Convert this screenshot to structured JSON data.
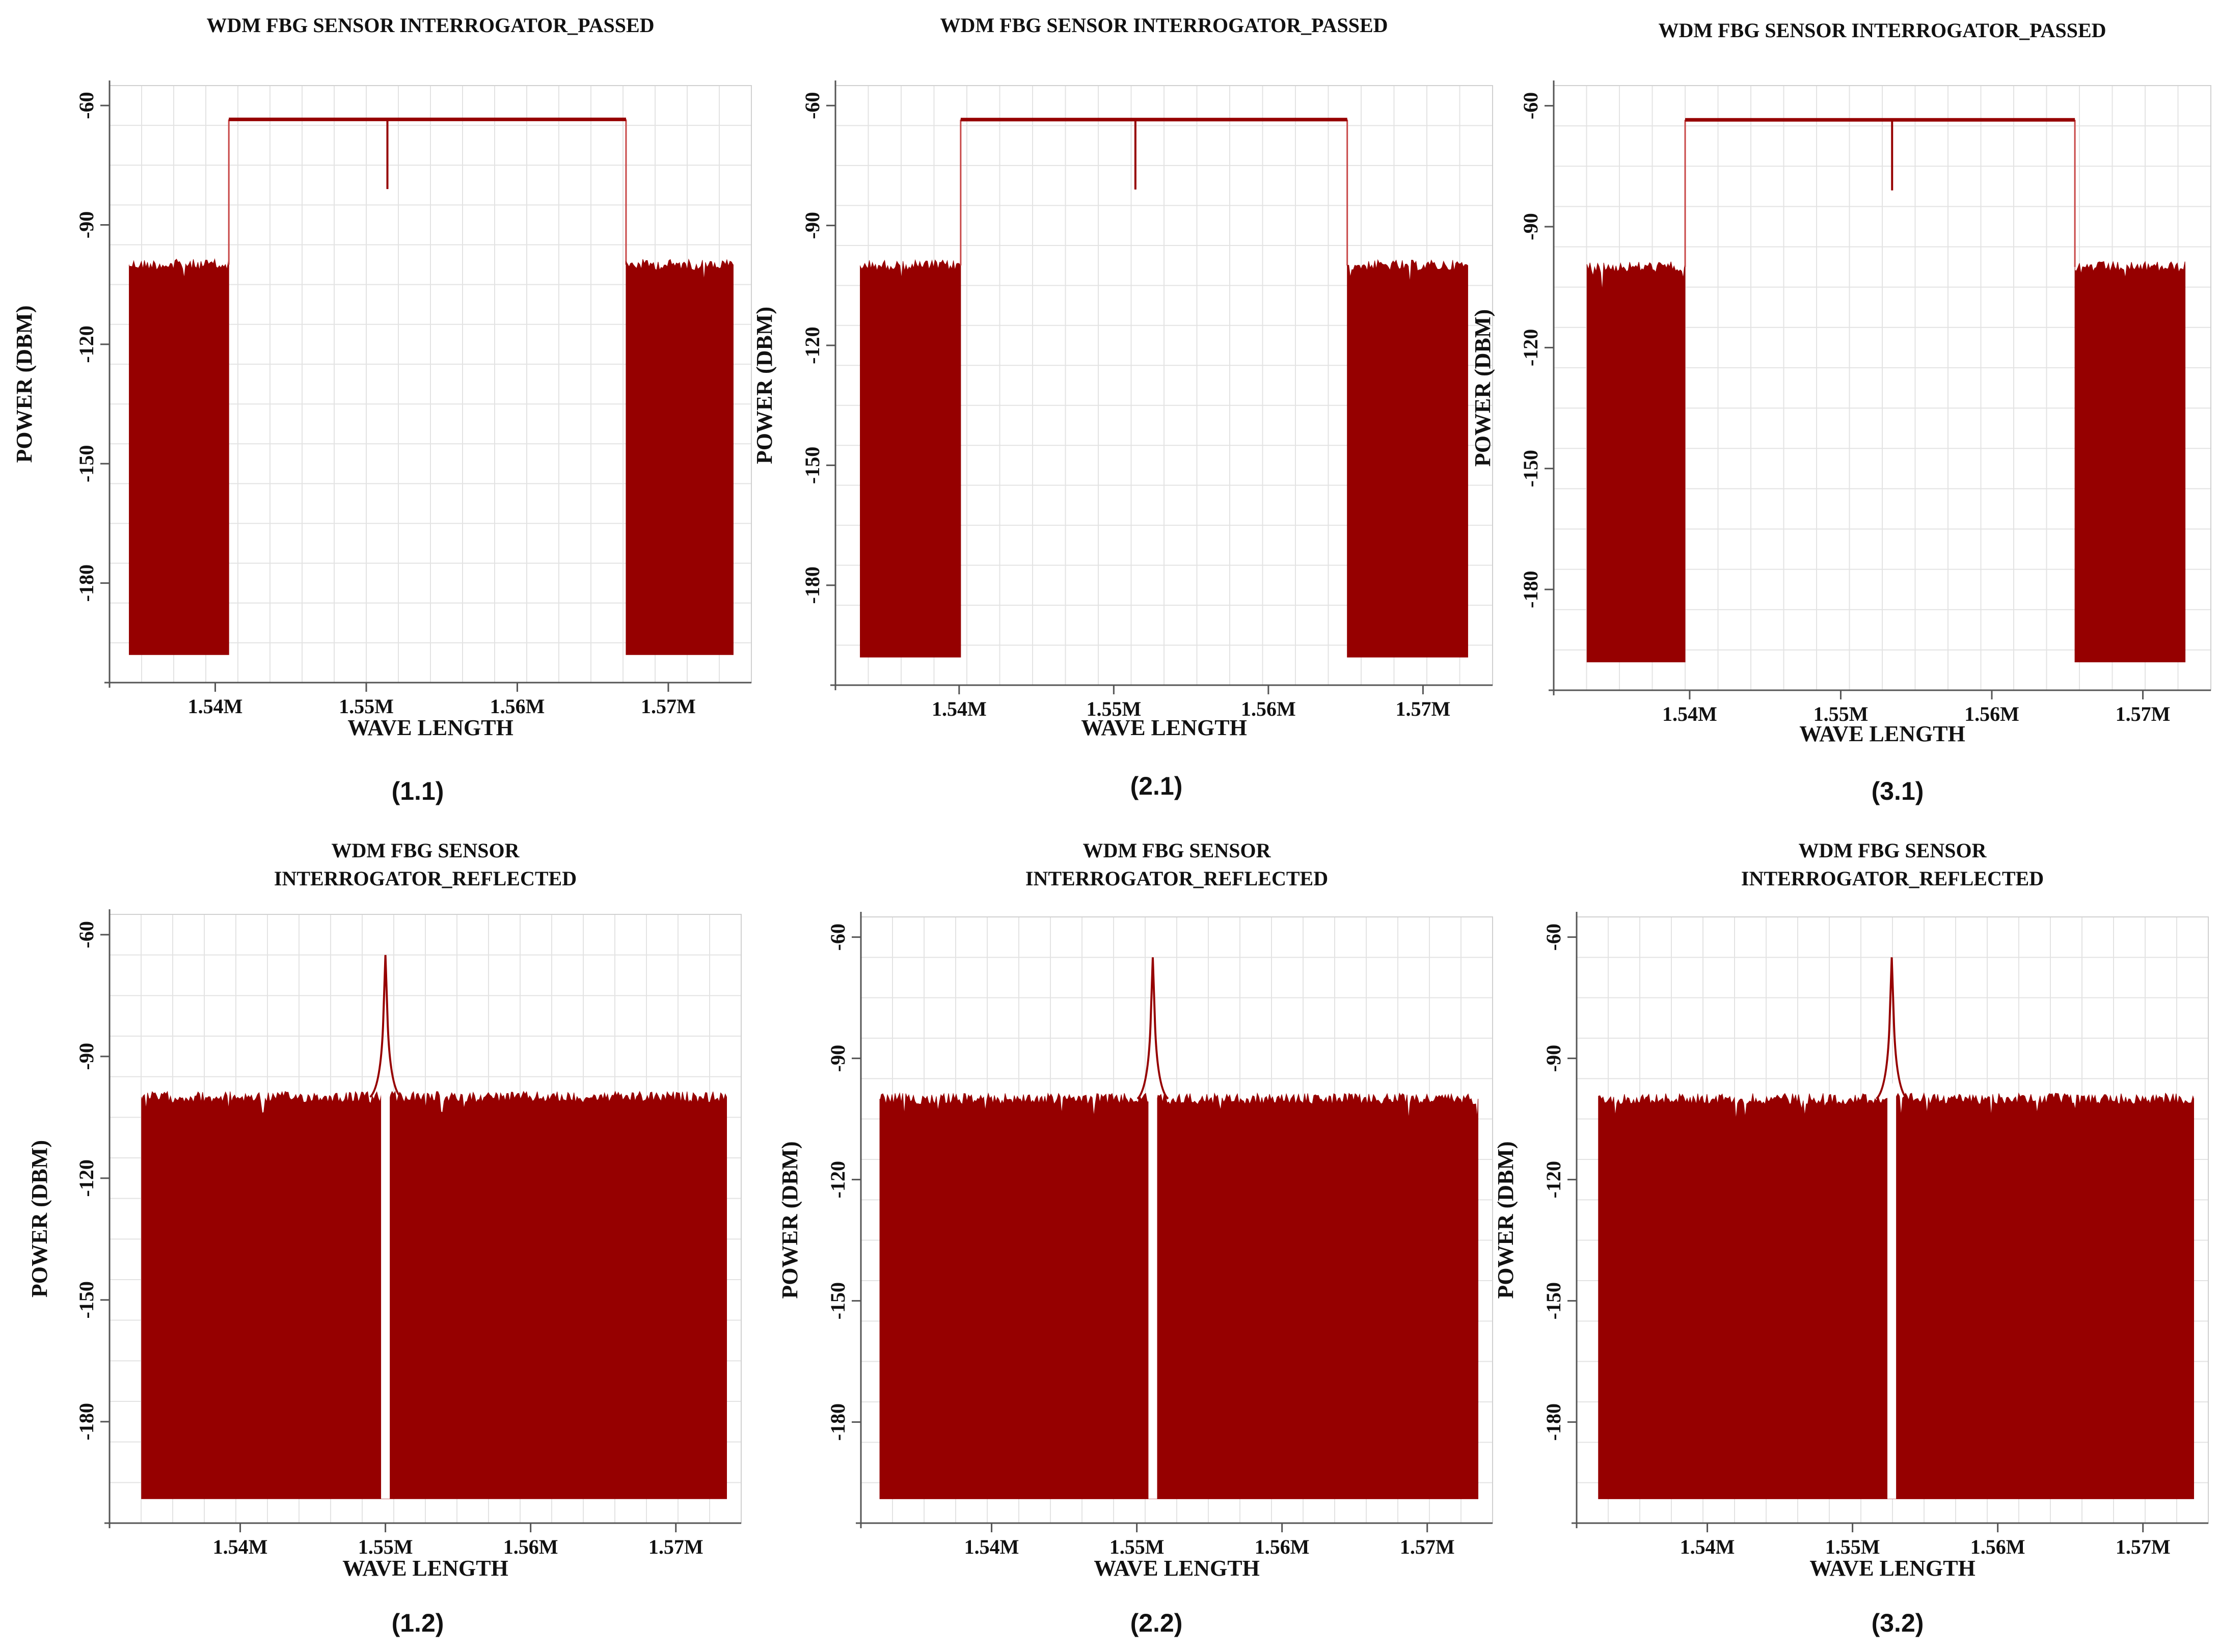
{
  "colors": {
    "signal": "#960000",
    "signal_light": "#c84848"
  },
  "chart_data": [
    {
      "id": "1.1",
      "type": "area",
      "title": [
        "WDM FBG SENSOR INTERROGATOR_PASSED"
      ],
      "xlabel": "WAVE LENGTH",
      "ylabel": "POWER (DBM)",
      "caption": "(1.1)",
      "xlim": [
        1.533,
        1.5755
      ],
      "ylim": [
        -205,
        -55
      ],
      "x_ticks": [
        1.54,
        1.55,
        1.56,
        1.57
      ],
      "x_tick_labels": [
        "1.54M",
        "1.55M",
        "1.56M",
        "1.57M"
      ],
      "y_ticks": [
        -60,
        -90,
        -120,
        -150,
        -180
      ],
      "y_tick_labels": [
        "-60",
        "-90",
        "-120",
        "-150",
        "-180"
      ],
      "series": [
        {
          "kind": "noise_band",
          "x": [
            1.5343,
            1.5409
          ],
          "top": -100,
          "bottom": -198
        },
        {
          "kind": "passband",
          "x": [
            1.5409,
            1.5672
          ],
          "level": -63.5
        },
        {
          "kind": "notch",
          "x": 1.5514,
          "depth": -81
        },
        {
          "kind": "noise_band",
          "x": [
            1.5672,
            1.5743
          ],
          "top": -100,
          "bottom": -198
        }
      ]
    },
    {
      "id": "2.1",
      "type": "area",
      "title": [
        "WDM FBG SENSOR INTERROGATOR_PASSED"
      ],
      "xlabel": "WAVE LENGTH",
      "ylabel": "POWER (DBM)",
      "caption": "(2.1)",
      "xlim": [
        1.532,
        1.5745
      ],
      "ylim": [
        -205,
        -55
      ],
      "x_ticks": [
        1.54,
        1.55,
        1.56,
        1.57
      ],
      "x_tick_labels": [
        "1.54M",
        "1.55M",
        "1.56M",
        "1.57M"
      ],
      "y_ticks": [
        -60,
        -90,
        -120,
        -150,
        -180
      ],
      "y_tick_labels": [
        "-60",
        "-90",
        "-120",
        "-150",
        "-180"
      ],
      "series": [
        {
          "kind": "noise_band",
          "x": [
            1.5336,
            1.5401
          ],
          "top": -100,
          "bottom": -198
        },
        {
          "kind": "passband",
          "x": [
            1.5401,
            1.5651
          ],
          "level": -63.5
        },
        {
          "kind": "notch",
          "x": 1.5514,
          "depth": -81
        },
        {
          "kind": "noise_band",
          "x": [
            1.5651,
            1.5729
          ],
          "top": -100,
          "bottom": -198
        }
      ]
    },
    {
      "id": "3.1",
      "type": "area",
      "title": [
        "WDM FBG SENSOR INTERROGATOR_PASSED"
      ],
      "xlabel": "WAVE LENGTH",
      "ylabel": "POWER (DBM)",
      "caption": "(3.1)",
      "xlim": [
        1.531,
        1.5745
      ],
      "ylim": [
        -205,
        -55
      ],
      "x_ticks": [
        1.54,
        1.55,
        1.56,
        1.57
      ],
      "x_tick_labels": [
        "1.54M",
        "1.55M",
        "1.56M",
        "1.57M"
      ],
      "y_ticks": [
        -60,
        -90,
        -120,
        -150,
        -180
      ],
      "y_tick_labels": [
        "-60",
        "-90",
        "-120",
        "-150",
        "-180"
      ],
      "series": [
        {
          "kind": "noise_band",
          "x": [
            1.5332,
            1.5397
          ],
          "top": -100,
          "bottom": -198
        },
        {
          "kind": "passband",
          "x": [
            1.5397,
            1.5655
          ],
          "level": -63.5
        },
        {
          "kind": "notch",
          "x": 1.5534,
          "depth": -81
        },
        {
          "kind": "noise_band",
          "x": [
            1.5655,
            1.5728
          ],
          "top": -100,
          "bottom": -198
        }
      ]
    },
    {
      "id": "1.2",
      "type": "area",
      "title": [
        "WDM FBG SENSOR",
        "INTERROGATOR_REFLECTED"
      ],
      "xlabel": "WAVE LENGTH",
      "ylabel": "POWER (DBM)",
      "caption": "(1.2)",
      "xlim": [
        1.531,
        1.5745
      ],
      "ylim": [
        -205,
        -55
      ],
      "x_ticks": [
        1.54,
        1.55,
        1.56,
        1.57
      ],
      "x_tick_labels": [
        "1.54M",
        "1.55M",
        "1.56M",
        "1.57M"
      ],
      "y_ticks": [
        -60,
        -90,
        -120,
        -150,
        -180
      ],
      "y_tick_labels": [
        "-60",
        "-90",
        "-120",
        "-150",
        "-180"
      ],
      "series": [
        {
          "kind": "noise_band",
          "x": [
            1.5332,
            1.5735
          ],
          "top": -100,
          "bottom": -199,
          "gap": [
            1.5497,
            1.5503
          ]
        },
        {
          "kind": "peak",
          "x": 1.55,
          "peak": -65
        }
      ]
    },
    {
      "id": "2.2",
      "type": "area",
      "title": [
        "WDM FBG SENSOR",
        "INTERROGATOR_REFLECTED"
      ],
      "xlabel": "WAVE LENGTH",
      "ylabel": "POWER (DBM)",
      "caption": "(2.2)",
      "xlim": [
        1.531,
        1.5745
      ],
      "ylim": [
        -205,
        -55
      ],
      "x_ticks": [
        1.54,
        1.55,
        1.56,
        1.57
      ],
      "x_tick_labels": [
        "1.54M",
        "1.55M",
        "1.56M",
        "1.57M"
      ],
      "y_ticks": [
        -60,
        -90,
        -120,
        -150,
        -180
      ],
      "y_tick_labels": [
        "-60",
        "-90",
        "-120",
        "-150",
        "-180"
      ],
      "series": [
        {
          "kind": "noise_band",
          "x": [
            1.5323,
            1.5735
          ],
          "top": -100,
          "bottom": -199,
          "gap": [
            1.5508,
            1.5514
          ]
        },
        {
          "kind": "peak",
          "x": 1.5511,
          "peak": -65
        }
      ]
    },
    {
      "id": "3.2",
      "type": "area",
      "title": [
        "WDM FBG SENSOR",
        "INTERROGATOR_REFLECTED"
      ],
      "xlabel": "WAVE LENGTH",
      "ylabel": "POWER (DBM)",
      "caption": "(3.2)",
      "xlim": [
        1.531,
        1.5745
      ],
      "ylim": [
        -205,
        -55
      ],
      "x_ticks": [
        1.54,
        1.55,
        1.56,
        1.57
      ],
      "x_tick_labels": [
        "1.54M",
        "1.55M",
        "1.56M",
        "1.57M"
      ],
      "y_ticks": [
        -60,
        -90,
        -120,
        -150,
        -180
      ],
      "y_tick_labels": [
        "-60",
        "-90",
        "-120",
        "-150",
        "-180"
      ],
      "series": [
        {
          "kind": "noise_band",
          "x": [
            1.5325,
            1.5735
          ],
          "top": -100,
          "bottom": -199,
          "gap": [
            1.5524,
            1.553
          ]
        },
        {
          "kind": "peak",
          "x": 1.5527,
          "peak": -65
        }
      ]
    }
  ]
}
